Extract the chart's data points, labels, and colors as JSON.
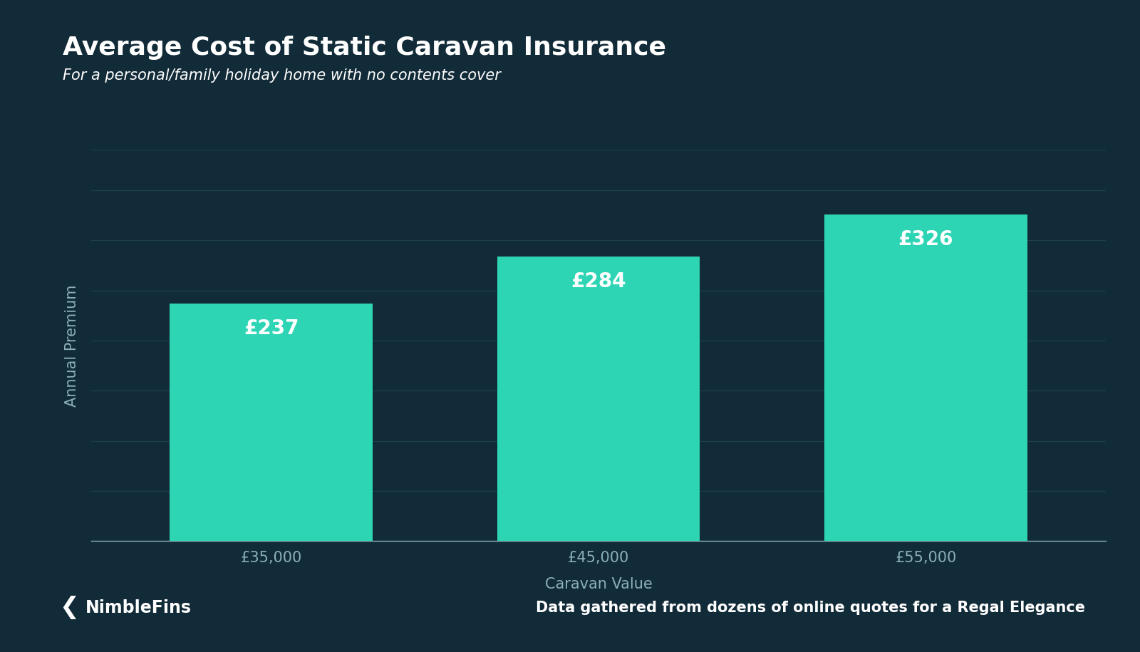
{
  "title": "Average Cost of Static Caravan Insurance",
  "subtitle": "For a personal/family holiday home with no contents cover",
  "xlabel": "Caravan Value",
  "ylabel": "Annual Premium",
  "categories": [
    "£35,000",
    "£45,000",
    "£55,000"
  ],
  "values": [
    237,
    284,
    326
  ],
  "bar_labels": [
    "£237",
    "£284",
    "£326"
  ],
  "bar_color": "#2dd5b5",
  "background_color": "#122b38",
  "plot_bg_color": "#122b38",
  "grid_color": "#1d3f50",
  "text_color": "#ffffff",
  "axis_label_color": "#8ab0bb",
  "footer_left": "NimbleFins",
  "footer_right": "Data gathered from dozens of online quotes for a Regal Elegance",
  "ylim": [
    0,
    390
  ],
  "yticks": [
    0,
    50,
    100,
    150,
    200,
    250,
    300,
    350
  ],
  "title_fontsize": 26,
  "subtitle_fontsize": 15,
  "label_fontsize": 15,
  "bar_label_fontsize": 20,
  "tick_fontsize": 15,
  "footer_fontsize": 15
}
